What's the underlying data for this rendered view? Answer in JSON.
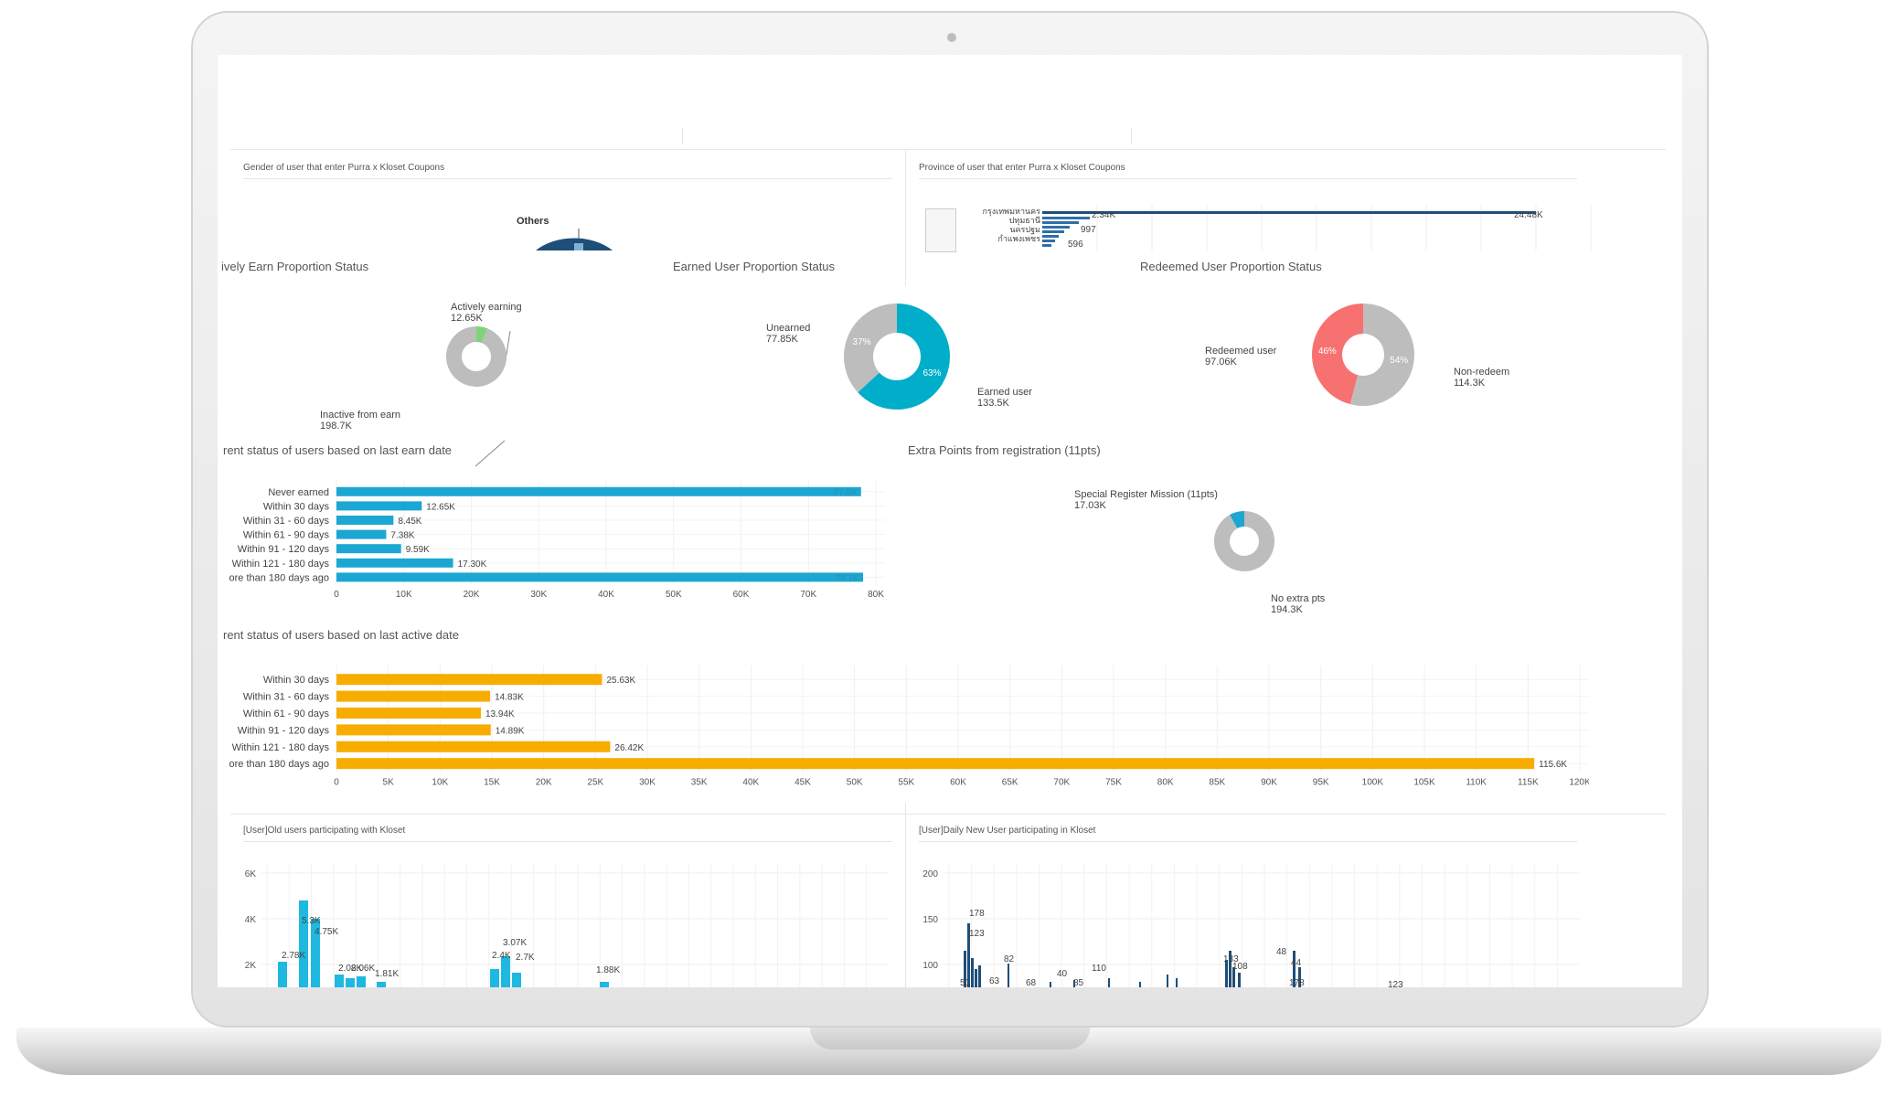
{
  "colors": {
    "blue": "#1ba7d1",
    "teal": "#00aec9",
    "orange": "#f6ad00",
    "red": "#f87171",
    "gray": "#bdbdbd",
    "green": "#7fd47a",
    "navy": "#1f4e79"
  },
  "top_panels": {
    "gender_title": "Gender of user that enter Purra x Kloset Coupons",
    "gender_others": "Others",
    "province_title": "Province of user that enter Purra x Kloset Coupons",
    "province_rows": [
      "กรุงเทพมหานคร",
      "ปทุมธานี",
      "นครปฐม",
      "กำแพงเพชร"
    ],
    "province_values": [
      "2.34K",
      "997",
      "596"
    ],
    "province_max": "24.48K"
  },
  "donuts": [
    {
      "title": "ively Earn Proportion Status",
      "a_label": "Actively earning",
      "a_value": "12.65K",
      "b_label": "Inactive from earn",
      "b_value": "198.7K"
    },
    {
      "title": "Earned User Proportion Status",
      "a_label": "Unearned",
      "a_value": "77.85K",
      "a_pct": "37%",
      "b_label": "Earned user",
      "b_value": "133.5K",
      "b_pct": "63%"
    },
    {
      "title": "Redeemed User Proportion Status",
      "a_label": "Redeemed user",
      "a_value": "97.06K",
      "a_pct": "46%",
      "b_label": "Non-redeem",
      "b_value": "114.3K",
      "b_pct": "54%"
    },
    {
      "title": "Extra Points from registration (11pts)",
      "a_label": "Special Register Mission (11pts)",
      "a_value": "17.03K",
      "b_label": "No extra pts",
      "b_value": "194.3K"
    }
  ],
  "chart_data": [
    {
      "type": "bar",
      "orientation": "horizontal",
      "title": "rent status of users based on last earn date",
      "categories": [
        "Never earned",
        "Within 30 days",
        "Within 31 - 60 days",
        "Within 61 - 90 days",
        "Within 91 - 120 days",
        "Within 121 - 180 days",
        "ore than 180 days ago"
      ],
      "values": [
        77800,
        12650,
        8450,
        7380,
        9590,
        17300,
        78100
      ],
      "labels": [
        "77.8K",
        "12.65K",
        "8.45K",
        "7.38K",
        "9.59K",
        "17.30K",
        "78.1K"
      ],
      "xlim": [
        0,
        80000
      ],
      "ticks": [
        "0",
        "10K",
        "20K",
        "30K",
        "40K",
        "50K",
        "60K",
        "70K",
        "80K"
      ]
    },
    {
      "type": "bar",
      "orientation": "horizontal",
      "title": "rent status of users based on last active date",
      "categories": [
        "Within 30 days",
        "Within 31 - 60 days",
        "Within 61 - 90 days",
        "Within 91 - 120 days",
        "Within 121 - 180 days",
        "ore than 180 days ago"
      ],
      "values": [
        25630,
        14830,
        13940,
        14890,
        26420,
        115600
      ],
      "labels": [
        "25.63K",
        "14.83K",
        "13.94K",
        "14.89K",
        "26.42K",
        "115.6K"
      ],
      "xlim": [
        0,
        120000
      ],
      "ticks": [
        "0",
        "5K",
        "10K",
        "15K",
        "20K",
        "25K",
        "30K",
        "35K",
        "40K",
        "45K",
        "50K",
        "55K",
        "60K",
        "65K",
        "70K",
        "75K",
        "80K",
        "85K",
        "90K",
        "95K",
        "100K",
        "105K",
        "110K",
        "115K",
        "120K"
      ]
    },
    {
      "type": "pie",
      "title": "Earned User Proportion Status",
      "labels": [
        "Unearned",
        "Earned user"
      ],
      "values": [
        77850,
        133500
      ]
    },
    {
      "type": "pie",
      "title": "Redeemed User Proportion Status",
      "labels": [
        "Redeemed user",
        "Non-redeem"
      ],
      "values": [
        97060,
        114300
      ]
    },
    {
      "type": "pie",
      "title": "ively Earn Proportion Status",
      "labels": [
        "Actively earning",
        "Inactive from earn"
      ],
      "values": [
        12650,
        198700
      ]
    },
    {
      "type": "pie",
      "title": "Extra Points from registration (11pts)",
      "labels": [
        "Special Register Mission (11pts)",
        "No extra pts"
      ],
      "values": [
        17030,
        194300
      ]
    },
    {
      "type": "bar",
      "title": "[User]Old users participating with Kloset",
      "yticks": [
        "6K",
        "4K",
        "2K"
      ],
      "labels": [
        "2.78K",
        "5.3K",
        "4.75K",
        "2.08K",
        "2.06K",
        "1.81K",
        "2.4K",
        "3.07K",
        "2.7K",
        "1.88K"
      ]
    },
    {
      "type": "bar",
      "title": "[User]Daily New User participating in Kloset",
      "yticks": [
        "200",
        "150",
        "100",
        "50"
      ],
      "labels": [
        "178",
        "123",
        "82",
        "51",
        "63",
        "40",
        "68",
        "110",
        "85",
        "133",
        "108",
        "48",
        "44"
      ]
    }
  ],
  "bottom_panels": {
    "old_title": "[User]Old users participating with Kloset",
    "new_title": "[User]Daily New User participating in Kloset"
  }
}
